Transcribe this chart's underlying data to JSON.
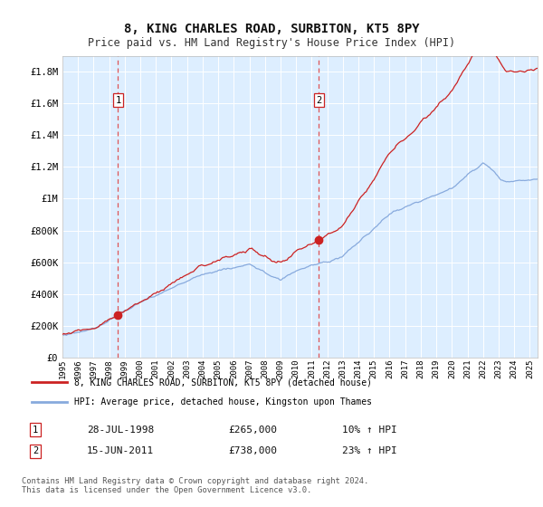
{
  "title": "8, KING CHARLES ROAD, SURBITON, KT5 8PY",
  "subtitle": "Price paid vs. HM Land Registry's House Price Index (HPI)",
  "title_fontsize": 10,
  "subtitle_fontsize": 8.5,
  "background_color": "#ffffff",
  "plot_bg_color": "#ddeeff",
  "line1_color": "#cc2222",
  "line2_color": "#88aadd",
  "ylim": [
    0,
    1900000
  ],
  "xlim_start": 1995.0,
  "xlim_end": 2025.5,
  "sale1_year": 1998.57,
  "sale1_price": 265000,
  "sale2_year": 2011.46,
  "sale2_price": 738000,
  "legend1_label": "8, KING CHARLES ROAD, SURBITON, KT5 8PY (detached house)",
  "legend2_label": "HPI: Average price, detached house, Kingston upon Thames",
  "note1_label": "1",
  "note1_date": "28-JUL-1998",
  "note1_price": "£265,000",
  "note1_hpi": "10% ↑ HPI",
  "note2_label": "2",
  "note2_date": "15-JUN-2011",
  "note2_price": "£738,000",
  "note2_hpi": "23% ↑ HPI",
  "footer": "Contains HM Land Registry data © Crown copyright and database right 2024.\nThis data is licensed under the Open Government Licence v3.0.",
  "ytick_labels": [
    "£0",
    "£200K",
    "£400K",
    "£600K",
    "£800K",
    "£1M",
    "£1.2M",
    "£1.4M",
    "£1.6M",
    "£1.8M"
  ],
  "ytick_values": [
    0,
    200000,
    400000,
    600000,
    800000,
    1000000,
    1200000,
    1400000,
    1600000,
    1800000
  ]
}
